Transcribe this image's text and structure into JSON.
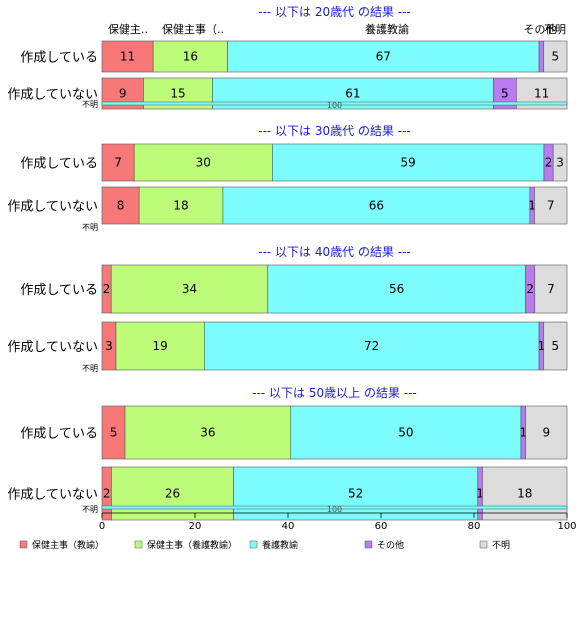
{
  "chart_data": {
    "type": "bar",
    "orientation": "horizontal-stacked-100",
    "column_headers": [
      "保健主..",
      "保健主事（..",
      "養護教諭",
      "その他",
      "不明"
    ],
    "series_names": [
      "保健主事（教諭）",
      "保健主事（養護教諭）",
      "養護教諭",
      "その他",
      "不明"
    ],
    "colors": [
      "#f87878",
      "#bcfc78",
      "#7cfcfc",
      "#b87cf0",
      "#dcdcdc"
    ],
    "xlim": [
      0,
      100
    ],
    "xticks": [
      0,
      20,
      40,
      60,
      80,
      100
    ],
    "groups": [
      {
        "title": "--- 以下は 20歳代 の結果 ---",
        "rows": [
          {
            "label": "作成している",
            "values": [
              11,
              16,
              67,
              1,
              5
            ],
            "labels": [
              "11",
              "16",
              "67",
              "",
              "5"
            ]
          },
          {
            "label": "作成していない",
            "values": [
              9,
              15,
              61,
              5,
              11
            ],
            "labels": [
              "9",
              "15",
              "61",
              "5",
              "11"
            ]
          }
        ],
        "unknown_row": {
          "label": "不明",
          "value_label": "100"
        }
      },
      {
        "title": "--- 以下は 30歳代 の結果 ---",
        "rows": [
          {
            "label": "作成している",
            "values": [
              7,
              30,
              59,
              2,
              3
            ],
            "labels": [
              "7",
              "30",
              "59",
              "2",
              "3"
            ]
          },
          {
            "label": "作成していない",
            "values": [
              8,
              18,
              66,
              1,
              7
            ],
            "labels": [
              "8",
              "18",
              "66",
              "1",
              "7"
            ]
          }
        ],
        "unknown_row": {
          "label": "不明",
          "value_label": ""
        }
      },
      {
        "title": "--- 以下は 40歳代 の結果 ---",
        "rows": [
          {
            "label": "作成している",
            "values": [
              2,
              34,
              56,
              2,
              7
            ],
            "labels": [
              "2",
              "34",
              "56",
              "2",
              "7"
            ]
          },
          {
            "label": "作成していない",
            "values": [
              3,
              19,
              72,
              1,
              5
            ],
            "labels": [
              "3",
              "19",
              "72",
              "1",
              "5"
            ]
          }
        ],
        "unknown_row": {
          "label": "不明",
          "value_label": ""
        }
      },
      {
        "title": "--- 以下は 50歳以上 の結果 ---",
        "rows": [
          {
            "label": "作成している",
            "values": [
              5,
              36,
              50,
              1,
              9
            ],
            "labels": [
              "5",
              "36",
              "50",
              "1",
              "9"
            ]
          },
          {
            "label": "作成していない",
            "values": [
              2,
              26,
              52,
              1,
              18
            ],
            "labels": [
              "2",
              "26",
              "52",
              "1",
              "18"
            ]
          }
        ],
        "unknown_row": {
          "label": "不明",
          "value_label": "100"
        }
      }
    ]
  }
}
